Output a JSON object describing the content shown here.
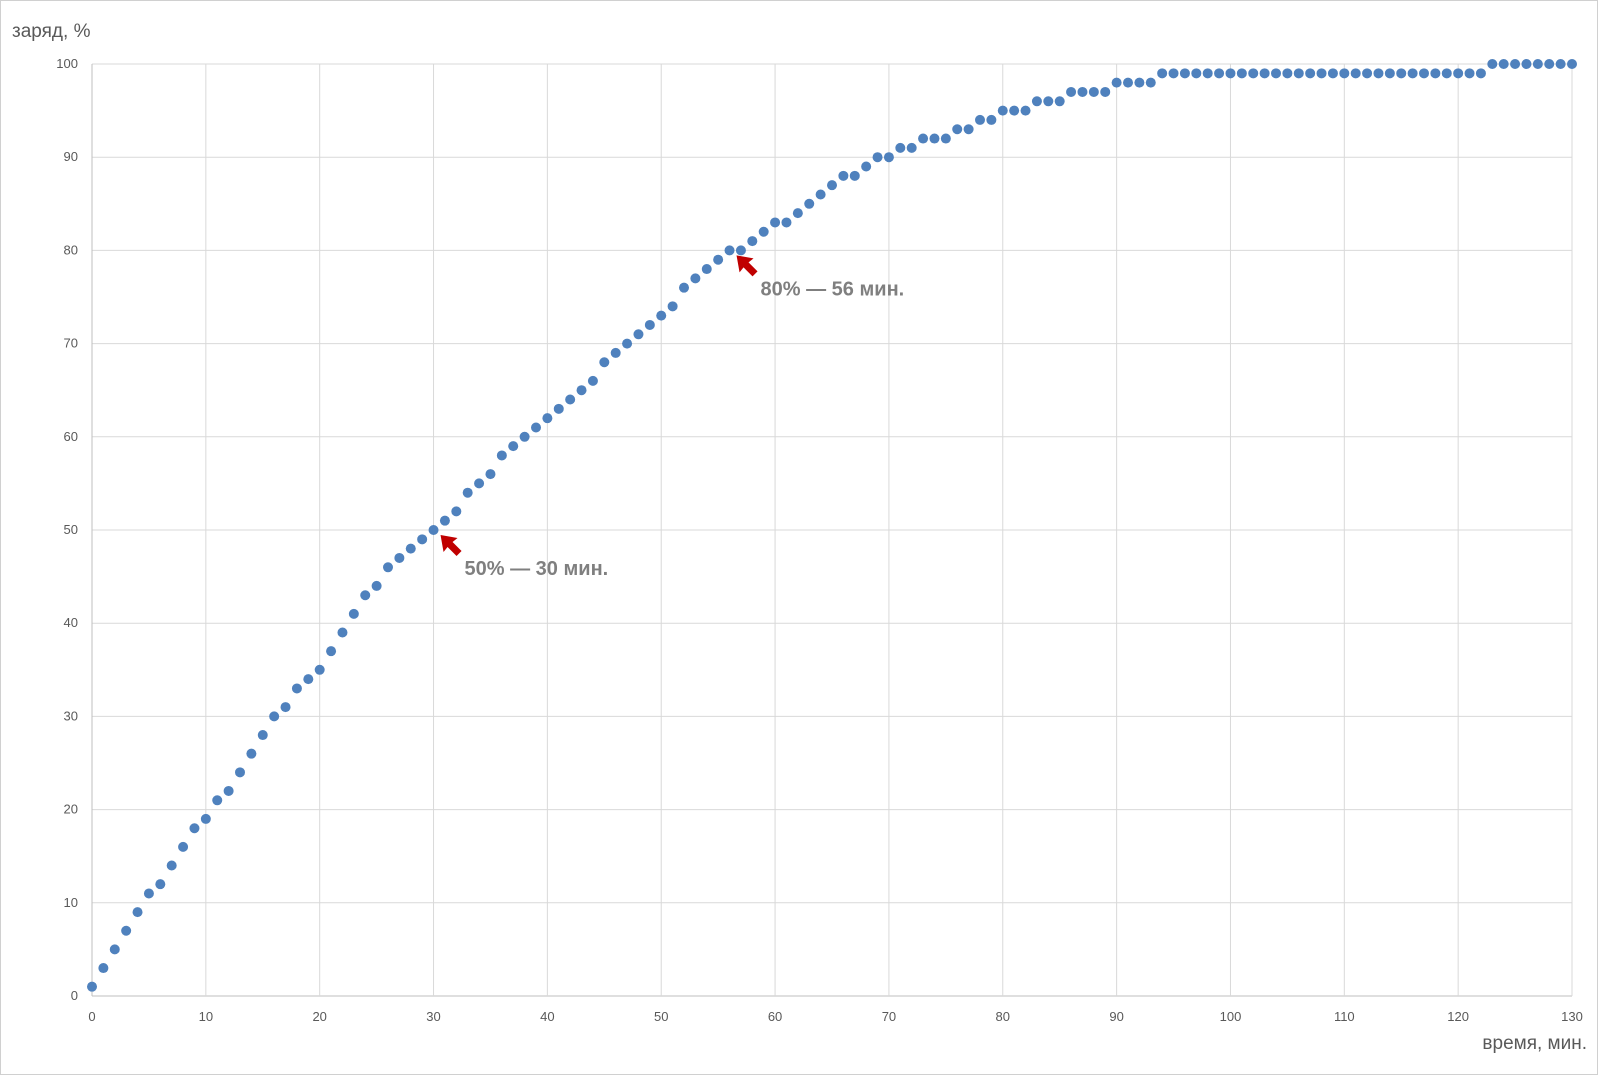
{
  "chart_data": {
    "type": "scatter",
    "ylabel": "заряд, %",
    "xlabel": "время, мин.",
    "xlim": [
      0,
      130
    ],
    "ylim": [
      0,
      100
    ],
    "xticks": [
      0,
      10,
      20,
      30,
      40,
      50,
      60,
      70,
      80,
      90,
      100,
      110,
      120,
      130
    ],
    "yticks": [
      0,
      10,
      20,
      30,
      40,
      50,
      60,
      70,
      80,
      90,
      100
    ],
    "grid": true,
    "marker_color": "#4f81bd",
    "x": [
      0,
      1,
      2,
      3,
      4,
      5,
      6,
      7,
      8,
      9,
      10,
      11,
      12,
      13,
      14,
      15,
      16,
      17,
      18,
      19,
      20,
      21,
      22,
      23,
      24,
      25,
      26,
      27,
      28,
      29,
      30,
      31,
      32,
      33,
      34,
      35,
      36,
      37,
      38,
      39,
      40,
      41,
      42,
      43,
      44,
      45,
      46,
      47,
      48,
      49,
      50,
      51,
      52,
      53,
      54,
      55,
      56,
      57,
      58,
      59,
      60,
      61,
      62,
      63,
      64,
      65,
      66,
      67,
      68,
      69,
      70,
      71,
      72,
      73,
      74,
      75,
      76,
      77,
      78,
      79,
      80,
      81,
      82,
      83,
      84,
      85,
      86,
      87,
      88,
      89,
      90,
      91,
      92,
      93,
      94,
      95,
      96,
      97,
      98,
      99,
      100,
      101,
      102,
      103,
      104,
      105,
      106,
      107,
      108,
      109,
      110,
      111,
      112,
      113,
      114,
      115,
      116,
      117,
      118,
      119,
      120,
      121,
      122,
      123,
      124,
      125,
      126,
      127,
      128,
      129,
      130
    ],
    "y": [
      1,
      3,
      5,
      7,
      9,
      11,
      12,
      14,
      16,
      18,
      19,
      21,
      22,
      24,
      26,
      28,
      30,
      31,
      33,
      34,
      35,
      37,
      39,
      41,
      43,
      44,
      46,
      47,
      48,
      49,
      50,
      51,
      52,
      54,
      55,
      56,
      58,
      59,
      60,
      61,
      62,
      63,
      64,
      65,
      66,
      68,
      69,
      70,
      71,
      72,
      73,
      74,
      76,
      77,
      78,
      79,
      80,
      80,
      81,
      82,
      83,
      83,
      84,
      85,
      86,
      87,
      88,
      88,
      89,
      90,
      90,
      91,
      91,
      92,
      92,
      92,
      93,
      93,
      94,
      94,
      95,
      95,
      95,
      96,
      96,
      96,
      97,
      97,
      97,
      97,
      98,
      98,
      98,
      98,
      99,
      99,
      99,
      99,
      99,
      99,
      99,
      99,
      99,
      99,
      99,
      99,
      99,
      99,
      99,
      99,
      99,
      99,
      99,
      99,
      99,
      99,
      99,
      99,
      99,
      99,
      99,
      99,
      99,
      100,
      100,
      100,
      100,
      100,
      100,
      100,
      100
    ],
    "annotations": [
      {
        "label": "50% — 30 мин.",
        "x": 30,
        "y": 50,
        "arrow_color": "#c00000"
      },
      {
        "label": "80% — 56 мин.",
        "x": 56,
        "y": 80,
        "arrow_color": "#c00000"
      }
    ]
  }
}
